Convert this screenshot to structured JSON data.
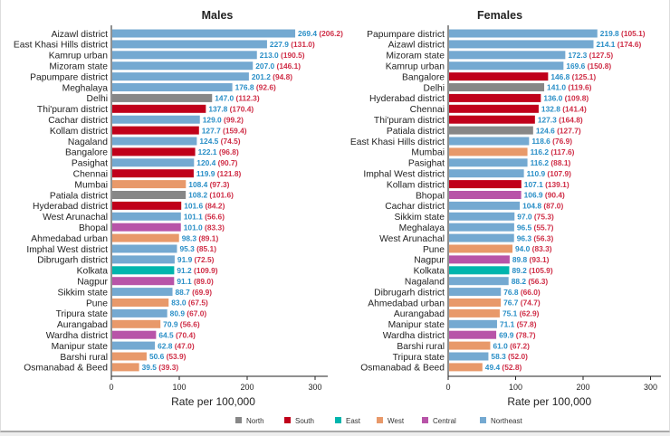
{
  "colors": {
    "North": "#878787",
    "South": "#c0001a",
    "East": "#00b5ad",
    "West": "#e8996a",
    "Central": "#b854a8",
    "Northeast": "#74a9d1",
    "value_text": "#2a8fc7",
    "paren_text": "#cf2e47"
  },
  "legend": [
    "North",
    "South",
    "East",
    "West",
    "Central",
    "Northeast"
  ],
  "chart_data": [
    {
      "type": "bar",
      "orientation": "horizontal",
      "title": "Males",
      "xlabel": "Rate per 100,000",
      "xlim": [
        0,
        300
      ],
      "xticks": [
        0,
        100,
        200,
        300
      ],
      "categories": [
        "Aizawl district",
        "East Khasi Hills district",
        "Kamrup urban",
        "Mizoram state",
        "Papumpare district",
        "Meghalaya",
        "Delhi",
        "Thi'puram district",
        "Cachar district",
        "Kollam district",
        "Nagaland",
        "Bangalore",
        "Pasighat",
        "Chennai",
        "Mumbai",
        "Patiala district",
        "Hyderabad district",
        "West Arunachal",
        "Bhopal",
        "Ahmedabad urban",
        "Imphal West district",
        "Dibrugarh district",
        "Kolkata",
        "Nagpur",
        "Sikkim state",
        "Pune",
        "Tripura state",
        "Aurangabad",
        "Wardha district",
        "Manipur state",
        "Barshi rural",
        "Osmanabad & Beed"
      ],
      "regions": [
        "Northeast",
        "Northeast",
        "Northeast",
        "Northeast",
        "Northeast",
        "Northeast",
        "North",
        "South",
        "Northeast",
        "South",
        "Northeast",
        "South",
        "Northeast",
        "South",
        "West",
        "North",
        "South",
        "Northeast",
        "Central",
        "West",
        "Northeast",
        "Northeast",
        "East",
        "Central",
        "Northeast",
        "West",
        "Northeast",
        "West",
        "Central",
        "Northeast",
        "West",
        "West"
      ],
      "values": [
        269.4,
        227.9,
        213.0,
        207.0,
        201.2,
        176.8,
        147.0,
        137.8,
        129.0,
        127.7,
        124.5,
        122.1,
        120.4,
        119.9,
        108.4,
        108.2,
        101.6,
        101.1,
        101.0,
        98.3,
        95.3,
        91.9,
        91.2,
        91.1,
        88.7,
        83.0,
        80.9,
        70.9,
        64.5,
        62.8,
        50.6,
        39.5
      ],
      "paren_values": [
        206.2,
        131.0,
        190.5,
        146.1,
        94.8,
        92.6,
        112.3,
        170.4,
        99.2,
        159.4,
        74.5,
        96.8,
        90.7,
        121.8,
        97.3,
        101.6,
        84.2,
        56.6,
        83.3,
        89.1,
        85.1,
        72.5,
        109.9,
        89.0,
        69.9,
        67.5,
        67.0,
        56.6,
        70.4,
        47.0,
        53.9,
        39.3
      ]
    },
    {
      "type": "bar",
      "orientation": "horizontal",
      "title": "Females",
      "xlabel": "Rate per 100,000",
      "xlim": [
        0,
        300
      ],
      "xticks": [
        0,
        100,
        200,
        300
      ],
      "categories": [
        "Papumpare district",
        "Aizawl district",
        "Mizoram state",
        "Kamrup urban",
        "Bangalore",
        "Delhi",
        "Hyderabad district",
        "Chennai",
        "Thi'puram district",
        "Patiala district",
        "East Khasi Hills district",
        "Mumbai",
        "Pasighat",
        "Imphal West district",
        "Kollam district",
        "Bhopal",
        "Cachar district",
        "Sikkim state",
        "Meghalaya",
        "West Arunachal",
        "Pune",
        "Nagpur",
        "Kolkata",
        "Nagaland",
        "Dibrugarh district",
        "Ahmedabad urban",
        "Aurangabad",
        "Manipur state",
        "Wardha district",
        "Barshi rural",
        "Tripura state",
        "Osmanabad & Beed"
      ],
      "regions": [
        "Northeast",
        "Northeast",
        "Northeast",
        "Northeast",
        "South",
        "North",
        "South",
        "South",
        "South",
        "North",
        "Northeast",
        "West",
        "Northeast",
        "Northeast",
        "South",
        "Central",
        "Northeast",
        "Northeast",
        "Northeast",
        "Northeast",
        "West",
        "Central",
        "East",
        "Northeast",
        "Northeast",
        "West",
        "West",
        "Northeast",
        "Central",
        "West",
        "Northeast",
        "West"
      ],
      "values": [
        219.8,
        214.1,
        172.3,
        169.6,
        146.8,
        141.0,
        136.0,
        132.8,
        127.3,
        124.6,
        118.6,
        116.2,
        116.2,
        110.9,
        107.1,
        106.9,
        104.8,
        97.0,
        96.5,
        96.3,
        94.0,
        89.8,
        89.2,
        88.2,
        76.8,
        76.7,
        75.1,
        71.1,
        69.9,
        61.0,
        58.3,
        49.4
      ],
      "paren_values": [
        105.1,
        174.6,
        127.5,
        150.8,
        125.1,
        119.6,
        109.8,
        141.4,
        164.8,
        127.7,
        76.9,
        117.6,
        88.1,
        107.9,
        139.1,
        90.4,
        87.0,
        75.3,
        55.7,
        56.3,
        83.3,
        93.1,
        105.9,
        56.3,
        66.0,
        74.7,
        62.9,
        57.8,
        78.7,
        67.2,
        52.0,
        52.8
      ]
    }
  ]
}
